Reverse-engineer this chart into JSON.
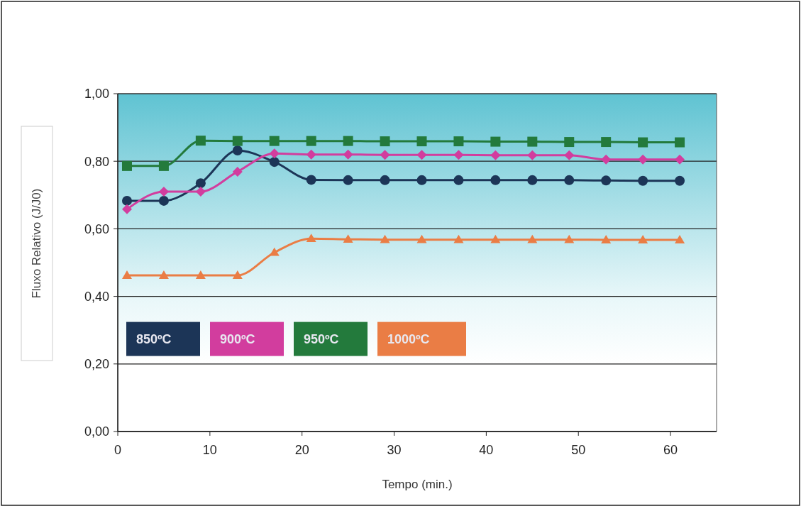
{
  "chart_data": {
    "type": "line",
    "xlabel": "Tempo (min.)",
    "ylabel": "Fluxo Relativo (J/J0)",
    "x": [
      1,
      5,
      9,
      13,
      17,
      21,
      25,
      29,
      33,
      37,
      41,
      45,
      49,
      53,
      57,
      61
    ],
    "series": [
      {
        "name": "850ºC",
        "color": "#1c3557",
        "marker": "circle",
        "values": [
          0.683,
          0.683,
          0.735,
          0.832,
          0.798,
          0.745,
          0.744,
          0.744,
          0.744,
          0.744,
          0.744,
          0.744,
          0.744,
          0.743,
          0.742,
          0.742
        ]
      },
      {
        "name": "900ºC",
        "color": "#d23d9e",
        "marker": "diamond",
        "values": [
          0.658,
          0.71,
          0.71,
          0.769,
          0.823,
          0.82,
          0.82,
          0.819,
          0.819,
          0.819,
          0.818,
          0.818,
          0.818,
          0.805,
          0.805,
          0.805
        ]
      },
      {
        "name": "950ºC",
        "color": "#237a3c",
        "marker": "square",
        "values": [
          0.786,
          0.786,
          0.861,
          0.86,
          0.86,
          0.86,
          0.86,
          0.859,
          0.859,
          0.859,
          0.858,
          0.858,
          0.857,
          0.857,
          0.856,
          0.856
        ]
      },
      {
        "name": "1000ºC",
        "color": "#ea7d45",
        "marker": "triangle",
        "values": [
          0.462,
          0.462,
          0.462,
          0.462,
          0.53,
          0.571,
          0.569,
          0.568,
          0.568,
          0.568,
          0.568,
          0.568,
          0.568,
          0.567,
          0.567,
          0.567
        ]
      }
    ],
    "xlim": [
      0,
      65
    ],
    "xticks": [
      0,
      10,
      20,
      30,
      40,
      50,
      60
    ],
    "ylim": [
      0,
      1
    ],
    "yticks": [
      {
        "value": 0,
        "label": "0,00"
      },
      {
        "value": 0.2,
        "label": "0,20"
      },
      {
        "value": 0.4,
        "label": "0,40"
      },
      {
        "value": 0.6,
        "label": "0,60"
      },
      {
        "value": 0.8,
        "label": "0,80"
      },
      {
        "value": 1,
        "label": "1,00"
      }
    ],
    "grid": "y",
    "legend": "left",
    "line_style": "solid"
  }
}
